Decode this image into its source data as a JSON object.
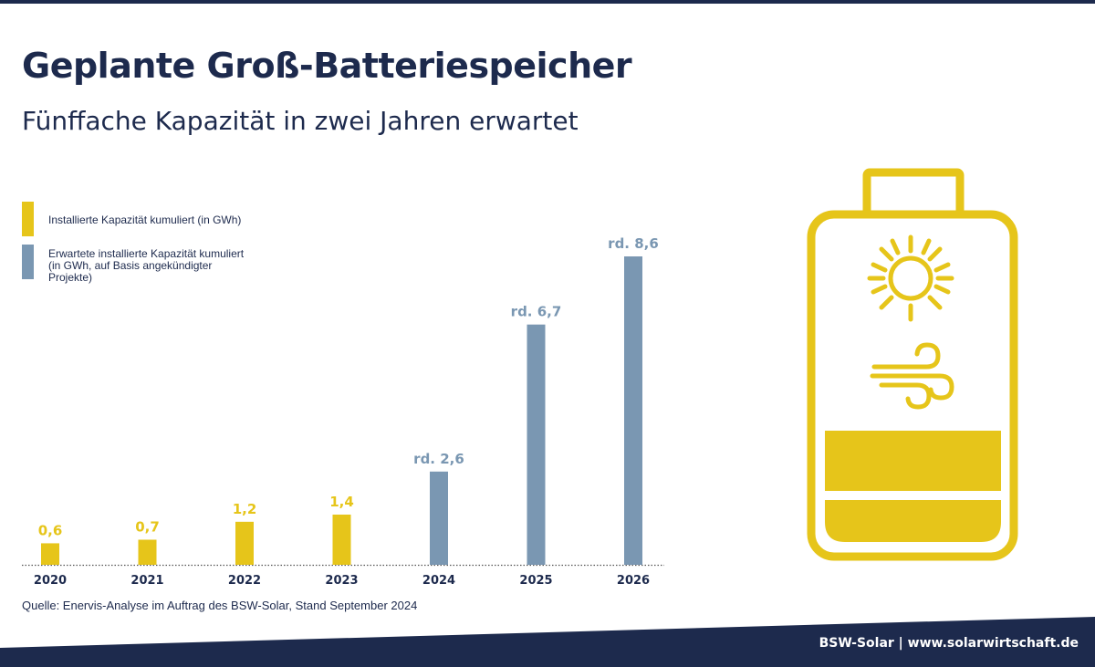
{
  "title": "Geplante Groß-Batteriespeicher",
  "subtitle": "Fünffache Kapazität in zwei Jahren erwartet",
  "colors": {
    "navy": "#1d2a4d",
    "installed": "#e6c51a",
    "expected": "#7a97b2"
  },
  "legend": [
    {
      "label": "Installierte Kapazität kumuliert (in GWh)",
      "color": "#e6c51a"
    },
    {
      "label": "Erwartete installierte Kapazität kumuliert\n(in GWh, auf Basis angekündigter\nProjekte)",
      "color": "#7a97b2"
    }
  ],
  "chart_data": {
    "type": "bar",
    "categories": [
      "2020",
      "2021",
      "2022",
      "2023",
      "2024",
      "2025",
      "2026"
    ],
    "values": [
      0.6,
      0.7,
      1.2,
      1.4,
      2.6,
      6.7,
      8.6
    ],
    "value_labels": [
      "0,6",
      "0,7",
      "1,2",
      "1,4",
      "rd. 2,6",
      "rd. 6,7",
      "rd. 8,6"
    ],
    "kind": [
      "installed",
      "installed",
      "installed",
      "installed",
      "expected",
      "expected",
      "expected"
    ],
    "series": [
      {
        "name": "Installierte Kapazität kumuliert (in GWh)",
        "values": [
          0.6,
          0.7,
          1.2,
          1.4,
          null,
          null,
          null
        ]
      },
      {
        "name": "Erwartete installierte Kapazität kumuliert (in GWh, auf Basis angekündigter Projekte)",
        "values": [
          null,
          null,
          null,
          null,
          2.6,
          6.7,
          8.6
        ]
      }
    ],
    "ylim": [
      0,
      8.6
    ],
    "grid": false,
    "legend_position": "top-left"
  },
  "source": "Quelle: Enervis-Analyse im Auftrag des BSW-Solar, Stand September 2024",
  "footer": "BSW-Solar | www.solarwirtschaft.de",
  "illustration": {
    "icons": [
      "battery-icon",
      "sun-icon",
      "wind-icon"
    ]
  }
}
